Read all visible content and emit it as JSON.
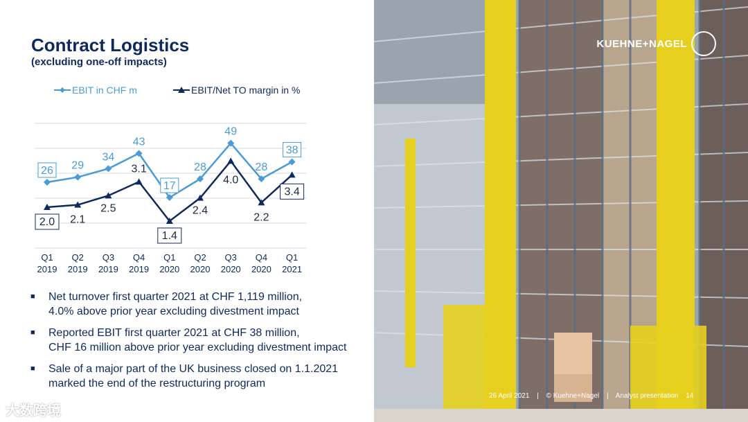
{
  "title": "Contract Logistics",
  "subtitle": "(excluding one-off impacts)",
  "chart_data": {
    "type": "line",
    "categories": [
      "Q1\n2019",
      "Q2\n2019",
      "Q3\n2019",
      "Q4\n2019",
      "Q1\n2020",
      "Q2\n2020",
      "Q3\n2020",
      "Q4\n2020",
      "Q1\n2021"
    ],
    "series": [
      {
        "name": "EBIT in CHF m",
        "values": [
          26,
          29,
          34,
          43,
          17,
          28,
          49,
          28,
          38
        ],
        "color": "#4a9bd6",
        "boxed": [
          0,
          4,
          8
        ]
      },
      {
        "name": "EBIT/Net TO margin in %",
        "values": [
          2.0,
          2.1,
          2.5,
          3.1,
          1.4,
          2.4,
          4.0,
          2.2,
          3.4
        ],
        "labels": [
          "2.0",
          "2.1",
          "2.5",
          "3.1",
          "1.4",
          "2.4",
          "4.0",
          "2.2",
          "3.4"
        ],
        "color": "#0e2a5c",
        "boxed": [
          0,
          4,
          8
        ]
      }
    ],
    "grid": true,
    "legend": "top"
  },
  "bullets": [
    [
      "Net turnover first quarter 2021 at CHF 1,119 million,",
      "4.0% above prior year excluding divestment impact"
    ],
    [
      "Reported EBIT first quarter 2021 at CHF 38 million,",
      "CHF 16 million above prior year excluding divestment impact"
    ],
    [
      "Sale of a major part of the UK business closed on 1.1.2021",
      "marked the end of the restructuring program"
    ]
  ],
  "bullet_icon": "square-bullet",
  "logo": "KUEHNE+NAGEL",
  "logo_icon": "anchor-icon",
  "footer": {
    "date": "26 April 2021",
    "sep": "|",
    "copyright": "© Kuehne+Nagel",
    "doc": "Analyst presentation",
    "page": "14"
  },
  "watermark": "大数跨境"
}
